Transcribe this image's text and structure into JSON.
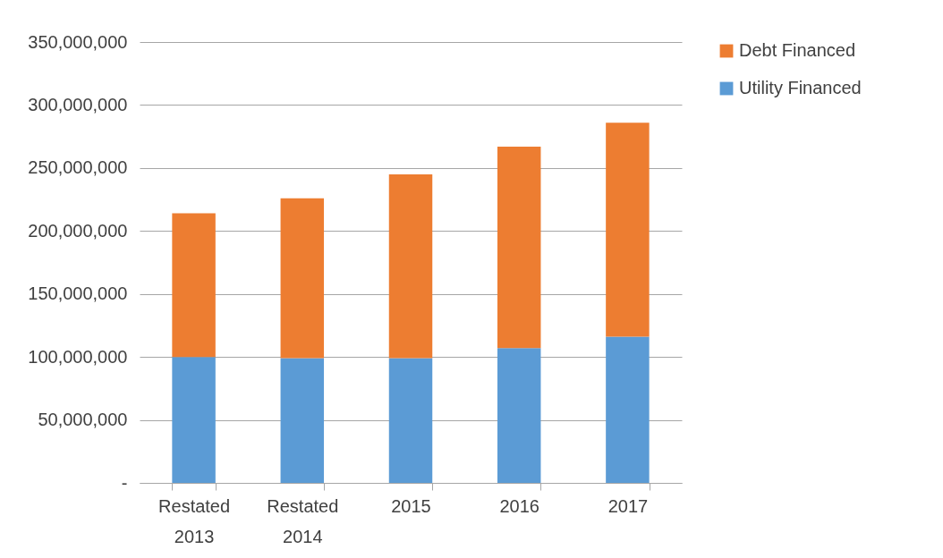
{
  "chart_data": {
    "type": "bar",
    "stacked": true,
    "categories": [
      "Restated 2013",
      "Restated 2014",
      "2015",
      "2016",
      "2017"
    ],
    "series": [
      {
        "name": "Utility Financed",
        "color": "#5b9bd5",
        "values": [
          100000000,
          99000000,
          99000000,
          107000000,
          116000000
        ]
      },
      {
        "name": "Debt Financed",
        "color": "#ed7d31",
        "values": [
          114000000,
          127000000,
          146000000,
          160000000,
          170000000
        ]
      }
    ],
    "ylim": [
      0,
      350000000
    ],
    "yticks": [
      {
        "value": 0,
        "label": "-"
      },
      {
        "value": 50000000,
        "label": "50,000,000"
      },
      {
        "value": 100000000,
        "label": "100,000,000"
      },
      {
        "value": 150000000,
        "label": "150,000,000"
      },
      {
        "value": 200000000,
        "label": "200,000,000"
      },
      {
        "value": 250000000,
        "label": "250,000,000"
      },
      {
        "value": 300000000,
        "label": "300,000,000"
      },
      {
        "value": 350000000,
        "label": "350,000,000"
      }
    ],
    "grid": "y",
    "legend": "right"
  }
}
